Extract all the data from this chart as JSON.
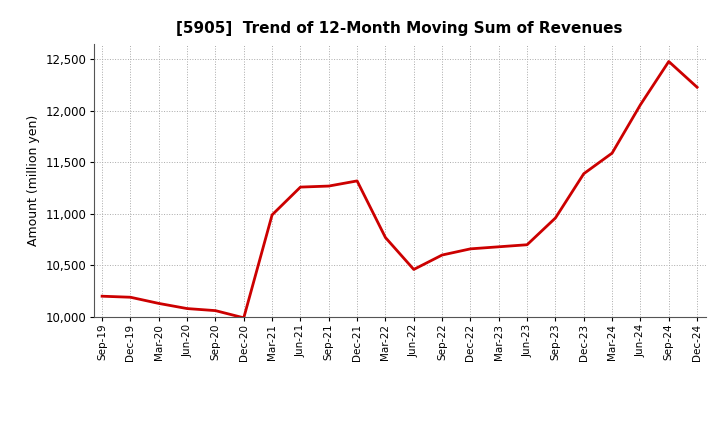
{
  "title": "[5905]  Trend of 12-Month Moving Sum of Revenues",
  "ylabel": "Amount (million yen)",
  "line_color": "#cc0000",
  "line_width": 2.0,
  "background_color": "#ffffff",
  "grid_color": "#aaaaaa",
  "ylim": [
    10000,
    12650
  ],
  "yticks": [
    10000,
    10500,
    11000,
    11500,
    12000,
    12500
  ],
  "x_labels": [
    "Sep-19",
    "Dec-19",
    "Mar-20",
    "Jun-20",
    "Sep-20",
    "Dec-20",
    "Mar-21",
    "Jun-21",
    "Sep-21",
    "Dec-21",
    "Mar-22",
    "Jun-22",
    "Sep-22",
    "Dec-22",
    "Mar-23",
    "Jun-23",
    "Sep-23",
    "Dec-23",
    "Mar-24",
    "Jun-24",
    "Sep-24",
    "Dec-24"
  ],
  "values": [
    10200,
    10190,
    10130,
    10080,
    10060,
    9990,
    10990,
    11260,
    11270,
    11320,
    10770,
    10460,
    10600,
    10660,
    10680,
    10700,
    10960,
    11390,
    11590,
    12060,
    12480,
    12230
  ]
}
